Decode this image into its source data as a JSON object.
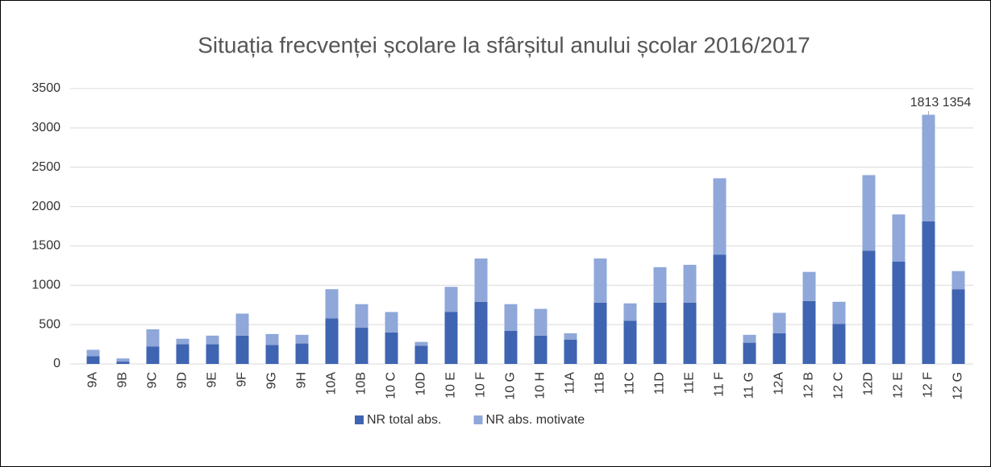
{
  "chart_data": {
    "type": "bar",
    "stacked": true,
    "title": "Situația frecvenței școlare la sfârșitul anului școlar 2016/2017",
    "categories": [
      "9A",
      "9B",
      "9C",
      "9D",
      "9E",
      "9F",
      "9G",
      "9H",
      "10A",
      "10B",
      "10 C",
      "10D",
      "10 E",
      "10 F",
      "10 G",
      "10 H",
      "11A",
      "11B",
      "11C",
      "11D",
      "11E",
      "11 F",
      "11 G",
      "12A",
      "12 B",
      "12 C",
      "12D",
      "12 E",
      "12 F",
      "12 G"
    ],
    "series": [
      {
        "name": "NR total abs.",
        "color": "#3f64b1",
        "values": [
          100,
          30,
          220,
          250,
          250,
          360,
          240,
          260,
          580,
          460,
          400,
          230,
          660,
          790,
          420,
          360,
          310,
          780,
          550,
          780,
          780,
          1390,
          270,
          390,
          800,
          510,
          1440,
          1300,
          1813,
          950
        ],
        "value_labels": [
          null,
          null,
          null,
          null,
          null,
          null,
          null,
          null,
          null,
          null,
          null,
          null,
          null,
          null,
          null,
          null,
          null,
          null,
          null,
          null,
          null,
          null,
          null,
          null,
          null,
          null,
          null,
          null,
          "1813",
          null
        ]
      },
      {
        "name": "NR abs. motivate",
        "color": "#8fa7d9",
        "values": [
          80,
          40,
          220,
          70,
          110,
          280,
          140,
          110,
          370,
          300,
          260,
          50,
          320,
          550,
          340,
          340,
          80,
          560,
          220,
          450,
          480,
          970,
          100,
          260,
          370,
          280,
          960,
          600,
          1354,
          230
        ],
        "value_labels": [
          null,
          null,
          null,
          null,
          null,
          null,
          null,
          null,
          null,
          null,
          null,
          null,
          null,
          null,
          null,
          null,
          null,
          null,
          null,
          null,
          null,
          null,
          null,
          null,
          null,
          null,
          null,
          null,
          "1354",
          null
        ]
      }
    ],
    "ylim": [
      0,
      3500
    ],
    "yticks": [
      0,
      500,
      1000,
      1500,
      2000,
      2500,
      3000,
      3500
    ],
    "grid": true,
    "legend": "bottom"
  }
}
